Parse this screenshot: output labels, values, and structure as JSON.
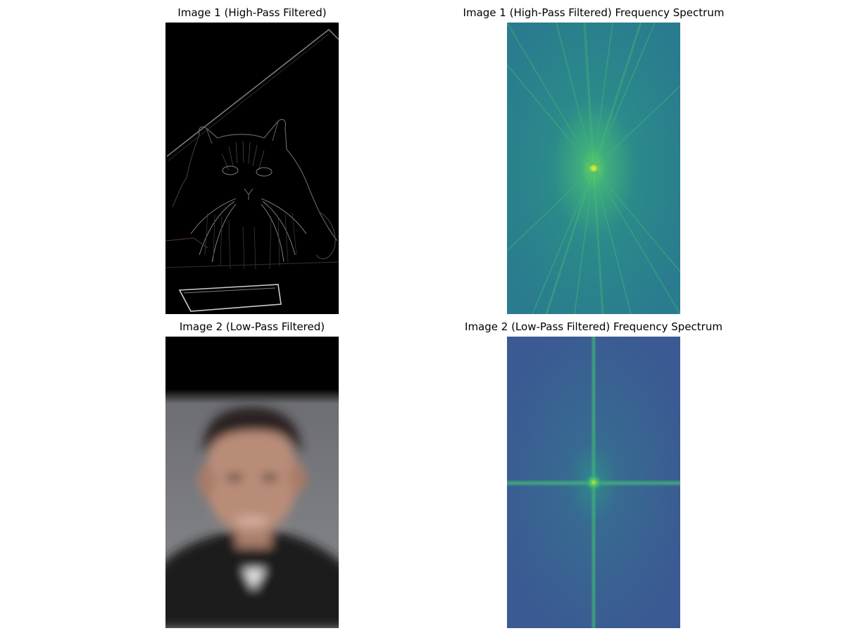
{
  "figure": {
    "panels": [
      {
        "title": "Image 1 (High-Pass Filtered)",
        "content": "high-pass filtered cat image (edges on black)",
        "colormap": "gray-rgb"
      },
      {
        "title": "Image 1 (High-Pass Filtered) Frequency Spectrum",
        "content": "frequency spectrum magnitude",
        "colormap": "viridis"
      },
      {
        "title": "Image 2 (Low-Pass Filtered)",
        "content": "low-pass filtered portrait (blurred)",
        "colormap": "rgb"
      },
      {
        "title": "Image 2 (Low-Pass Filtered) Frequency Spectrum",
        "content": "frequency spectrum magnitude",
        "colormap": "viridis"
      }
    ],
    "colors": {
      "background": "#ffffff",
      "spectrum1_base": "#2a7f8e",
      "spectrum1_peak": "#5fd56a",
      "spectrum2_base": "#3a5a93",
      "spectrum2_peak": "#3fbf80",
      "portrait_bg": "#7a7b80"
    }
  }
}
